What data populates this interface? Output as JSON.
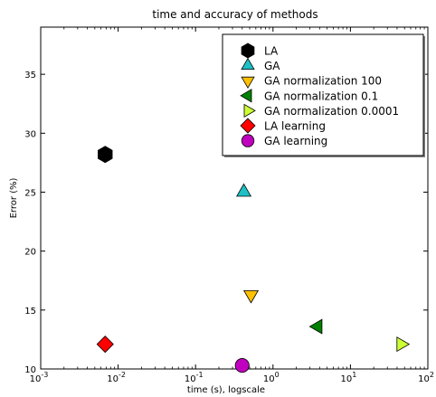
{
  "chart_data": {
    "type": "scatter",
    "title": "time and accuracy of methods",
    "xlabel": "time (s), logscale",
    "ylabel": "Error (%)",
    "x_scale": "log",
    "xlim": [
      0.001,
      100
    ],
    "ylim": [
      10,
      39
    ],
    "x_ticks": [
      {
        "value": 0.001,
        "base": "10",
        "exp": "-3"
      },
      {
        "value": 0.01,
        "base": "10",
        "exp": "-2"
      },
      {
        "value": 0.1,
        "base": "10",
        "exp": "-1"
      },
      {
        "value": 1,
        "base": "10",
        "exp": "0"
      },
      {
        "value": 10,
        "base": "10",
        "exp": "1"
      },
      {
        "value": 100,
        "base": "10",
        "exp": "2"
      }
    ],
    "y_ticks": [
      10,
      15,
      20,
      25,
      30,
      35
    ],
    "grid": false,
    "legend_position": "top-right",
    "series": [
      {
        "name": "LA",
        "marker": "hexagon",
        "color": "#000000",
        "x": 0.0068,
        "y": 28.2
      },
      {
        "name": "GA",
        "marker": "triangle-up",
        "color": "#1ec0c4",
        "x": 0.42,
        "y": 25.0
      },
      {
        "name": "GA normalization 100",
        "marker": "triangle-down",
        "color": "#ffc000",
        "x": 0.52,
        "y": 16.3
      },
      {
        "name": "GA normalization 0.1",
        "marker": "triangle-left",
        "color": "#008000",
        "x": 3.8,
        "y": 13.6
      },
      {
        "name": "GA normalization 0.0001",
        "marker": "triangle-right",
        "color": "#ccff33",
        "x": 45,
        "y": 12.1
      },
      {
        "name": "LA learning",
        "marker": "diamond",
        "color": "#ff0000",
        "x": 0.0068,
        "y": 12.1
      },
      {
        "name": "GA learning",
        "marker": "circle",
        "color": "#bf00bf",
        "x": 0.4,
        "y": 10.3
      }
    ]
  }
}
